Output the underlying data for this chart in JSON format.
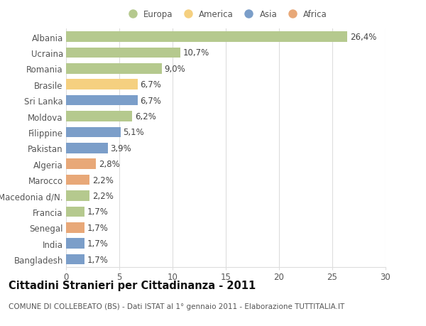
{
  "countries": [
    "Albania",
    "Ucraina",
    "Romania",
    "Brasile",
    "Sri Lanka",
    "Moldova",
    "Filippine",
    "Pakistan",
    "Algeria",
    "Marocco",
    "Macedonia d/N.",
    "Francia",
    "Senegal",
    "India",
    "Bangladesh"
  ],
  "values": [
    26.4,
    10.7,
    9.0,
    6.7,
    6.7,
    6.2,
    5.1,
    3.9,
    2.8,
    2.2,
    2.2,
    1.7,
    1.7,
    1.7,
    1.7
  ],
  "labels": [
    "26,4%",
    "10,7%",
    "9,0%",
    "6,7%",
    "6,7%",
    "6,2%",
    "5,1%",
    "3,9%",
    "2,8%",
    "2,2%",
    "2,2%",
    "1,7%",
    "1,7%",
    "1,7%",
    "1,7%"
  ],
  "continents": [
    "Europa",
    "Europa",
    "Europa",
    "America",
    "Asia",
    "Europa",
    "Asia",
    "Asia",
    "Africa",
    "Africa",
    "Europa",
    "Europa",
    "Africa",
    "Asia",
    "Asia"
  ],
  "continent_colors": {
    "Europa": "#b5c98e",
    "America": "#f5d080",
    "Asia": "#7b9ec9",
    "Africa": "#e8a878"
  },
  "legend_order": [
    "Europa",
    "America",
    "Asia",
    "Africa"
  ],
  "xlim": [
    0,
    30
  ],
  "xticks": [
    0,
    5,
    10,
    15,
    20,
    25,
    30
  ],
  "title": "Cittadini Stranieri per Cittadinanza - 2011",
  "subtitle": "COMUNE DI COLLEBEATO (BS) - Dati ISTAT al 1° gennaio 2011 - Elaborazione TUTTITALIA.IT",
  "background_color": "#ffffff",
  "bar_height": 0.65,
  "grid_color": "#dddddd",
  "label_fontsize": 8.5,
  "tick_fontsize": 8.5,
  "title_fontsize": 10.5,
  "subtitle_fontsize": 7.5,
  "text_color": "#555555",
  "label_text_color": "#444444"
}
